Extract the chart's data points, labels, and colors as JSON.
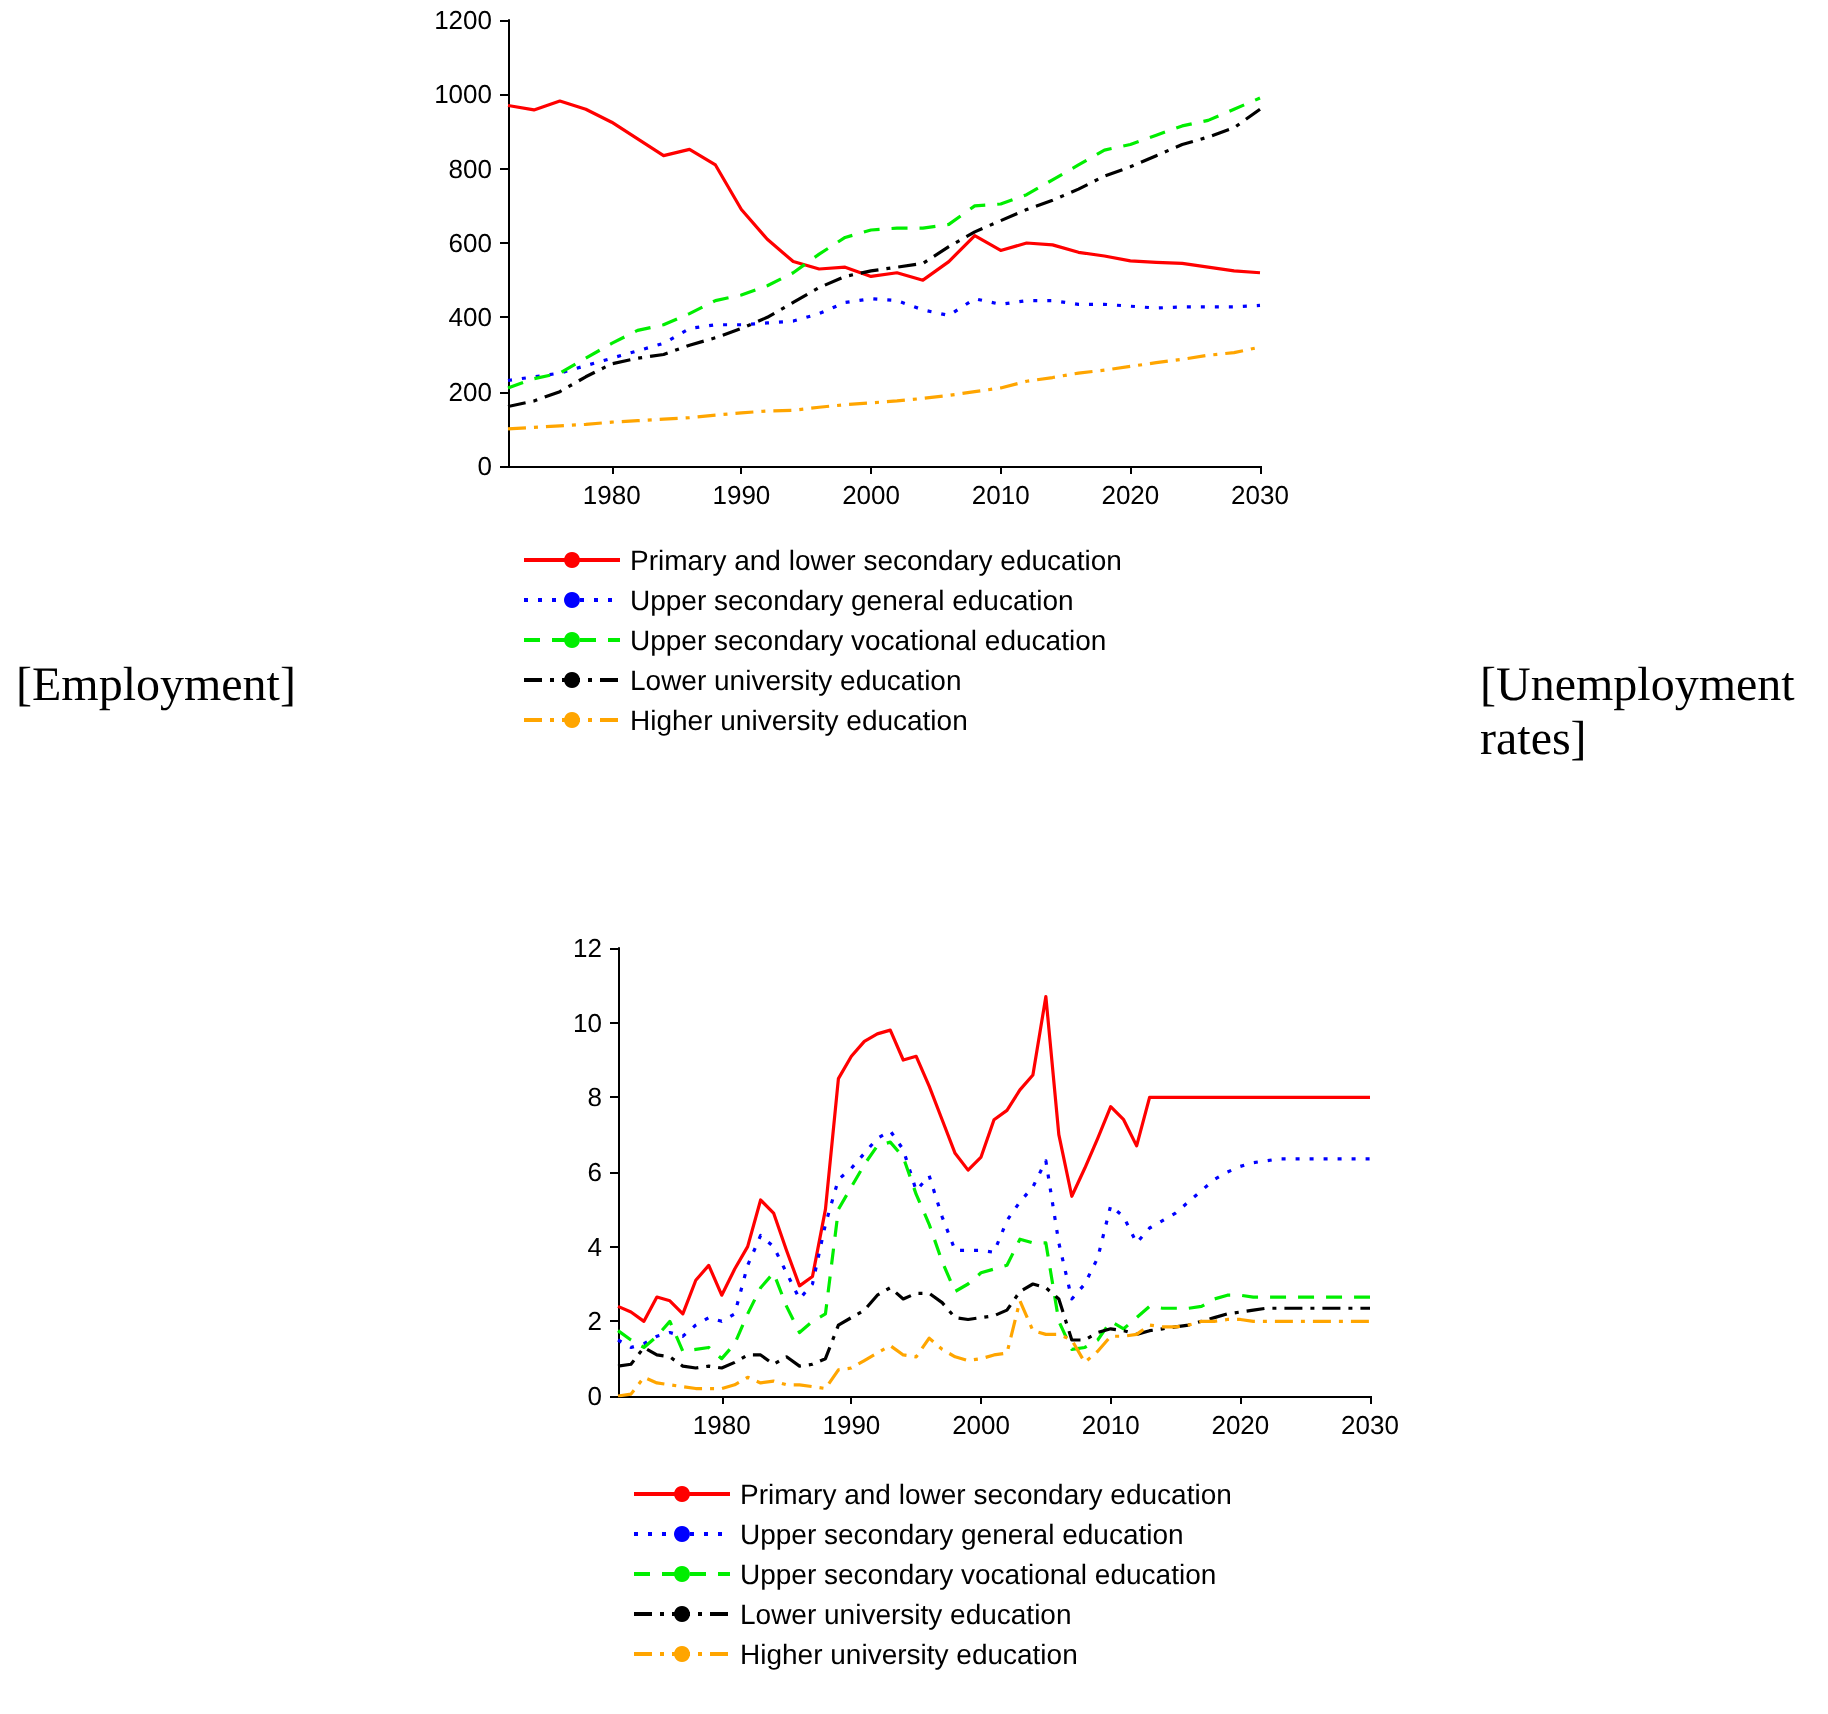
{
  "chart_data": [
    {
      "type": "line",
      "annotations": [
        "[Employment]"
      ],
      "legend": "bottom",
      "grid": false,
      "marker": "none",
      "xlim": [
        1972,
        2030
      ],
      "xticks": [
        1980,
        1990,
        2000,
        2010,
        2020,
        2030
      ],
      "ylim": [
        0,
        1200
      ],
      "yticks": [
        0,
        200,
        400,
        600,
        800,
        1000,
        1200
      ],
      "x": [
        1972,
        1974,
        1976,
        1978,
        1980,
        1982,
        1984,
        1986,
        1988,
        1990,
        1992,
        1994,
        1996,
        1998,
        2000,
        2002,
        2004,
        2006,
        2008,
        2010,
        2012,
        2014,
        2016,
        2018,
        2020,
        2022,
        2024,
        2026,
        2028,
        2030
      ],
      "series": [
        {
          "name": "Primary and lower secondary education",
          "color": "#ff0000",
          "line_style": "solid",
          "values": [
            970,
            958,
            982,
            960,
            925,
            880,
            835,
            852,
            810,
            690,
            610,
            550,
            530,
            535,
            510,
            520,
            500,
            550,
            620,
            580,
            600,
            595,
            575,
            565,
            552,
            548,
            545,
            535,
            525,
            520
          ]
        },
        {
          "name": "Upper secondary general education",
          "color": "#0000ff",
          "line_style": "dotted",
          "values": [
            230,
            240,
            250,
            270,
            290,
            310,
            330,
            370,
            380,
            380,
            385,
            390,
            410,
            440,
            450,
            445,
            420,
            405,
            450,
            435,
            445,
            445,
            435,
            435,
            430,
            425,
            428,
            428,
            428,
            432
          ]
        },
        {
          "name": "Upper secondary vocational education",
          "color": "#00ee00",
          "line_style": "dashed",
          "values": [
            210,
            235,
            250,
            290,
            330,
            365,
            380,
            410,
            445,
            460,
            485,
            520,
            570,
            615,
            635,
            640,
            640,
            650,
            700,
            705,
            730,
            770,
            810,
            850,
            865,
            890,
            915,
            930,
            960,
            990
          ]
        },
        {
          "name": "Lower university education",
          "color": "#000000",
          "line_style": "dashdot",
          "values": [
            160,
            175,
            200,
            240,
            275,
            290,
            300,
            325,
            345,
            370,
            400,
            440,
            480,
            510,
            525,
            535,
            545,
            590,
            630,
            660,
            690,
            715,
            745,
            780,
            805,
            835,
            865,
            885,
            910,
            960
          ]
        },
        {
          "name": "Higher university education",
          "color": "#ffa500",
          "line_style": "dashdot",
          "values": [
            100,
            104,
            108,
            112,
            118,
            122,
            126,
            130,
            137,
            143,
            148,
            150,
            158,
            165,
            170,
            175,
            182,
            190,
            200,
            210,
            228,
            238,
            250,
            258,
            268,
            278,
            287,
            298,
            305,
            320
          ]
        }
      ]
    },
    {
      "type": "line",
      "annotations": [
        "[Unemployment rates]"
      ],
      "legend": "bottom",
      "grid": false,
      "marker": "none",
      "xlim": [
        1972,
        2030
      ],
      "xticks": [
        1980,
        1990,
        2000,
        2010,
        2020,
        2030
      ],
      "ylim": [
        0,
        12
      ],
      "yticks": [
        0,
        2,
        4,
        6,
        8,
        10,
        12
      ],
      "x": [
        1972,
        1973,
        1974,
        1975,
        1976,
        1977,
        1978,
        1979,
        1980,
        1981,
        1982,
        1983,
        1984,
        1985,
        1986,
        1987,
        1988,
        1989,
        1990,
        1991,
        1992,
        1993,
        1994,
        1995,
        1996,
        1997,
        1998,
        1999,
        2000,
        2001,
        2002,
        2003,
        2004,
        2005,
        2006,
        2007,
        2008,
        2009,
        2010,
        2011,
        2012,
        2013,
        2014,
        2015,
        2016,
        2017,
        2018,
        2019,
        2020,
        2021,
        2022,
        2023,
        2024,
        2025,
        2026,
        2027,
        2028,
        2029,
        2030
      ],
      "series": [
        {
          "name": "Primary and lower secondary education",
          "color": "#ff0000",
          "line_style": "solid",
          "values": [
            2.4,
            2.25,
            2.0,
            2.65,
            2.55,
            2.2,
            3.1,
            3.5,
            2.7,
            3.4,
            4.0,
            5.25,
            4.9,
            3.9,
            2.95,
            3.2,
            5.0,
            8.5,
            9.1,
            9.5,
            9.7,
            9.8,
            9.0,
            9.1,
            8.3,
            7.4,
            6.5,
            6.05,
            6.4,
            7.4,
            7.65,
            8.2,
            8.6,
            10.7,
            7.0,
            5.35,
            6.1,
            6.9,
            7.75,
            7.4,
            6.7,
            8.0,
            8.0,
            8.0,
            8.0,
            8.0,
            8.0,
            8.0,
            8.0,
            8.0,
            8.0,
            8.0,
            8.0,
            8.0,
            8.0,
            8.0,
            8.0,
            8.0,
            8.0
          ]
        },
        {
          "name": "Upper secondary general education",
          "color": "#0000ff",
          "line_style": "dotted",
          "values": [
            1.5,
            1.3,
            1.4,
            1.6,
            1.7,
            1.6,
            1.9,
            2.1,
            2.0,
            2.2,
            3.5,
            4.3,
            4.0,
            3.3,
            2.6,
            3.0,
            4.6,
            5.8,
            6.1,
            6.5,
            6.9,
            7.1,
            6.6,
            5.5,
            5.9,
            4.8,
            3.9,
            3.9,
            3.9,
            3.85,
            4.7,
            5.2,
            5.6,
            6.3,
            4.1,
            2.6,
            3.0,
            3.7,
            5.1,
            4.8,
            4.1,
            4.5,
            4.7,
            4.9,
            5.2,
            5.5,
            5.8,
            6.0,
            6.15,
            6.25,
            6.3,
            6.35,
            6.35,
            6.35,
            6.35,
            6.35,
            6.35,
            6.35,
            6.35
          ]
        },
        {
          "name": "Upper secondary vocational education",
          "color": "#00ee00",
          "line_style": "dashed",
          "values": [
            1.75,
            1.5,
            1.3,
            1.6,
            2.0,
            1.2,
            1.25,
            1.3,
            1.0,
            1.4,
            2.2,
            2.9,
            3.3,
            2.4,
            1.7,
            2.0,
            2.2,
            5.0,
            5.6,
            6.2,
            6.7,
            6.8,
            6.4,
            5.4,
            4.6,
            3.6,
            2.8,
            3.0,
            3.3,
            3.4,
            3.5,
            4.2,
            4.1,
            4.1,
            2.0,
            1.25,
            1.3,
            1.5,
            2.0,
            1.8,
            2.1,
            2.4,
            2.35,
            2.35,
            2.35,
            2.4,
            2.6,
            2.7,
            2.7,
            2.65,
            2.65,
            2.65,
            2.65,
            2.65,
            2.65,
            2.65,
            2.65,
            2.65,
            2.65
          ]
        },
        {
          "name": "Lower university education",
          "color": "#000000",
          "line_style": "dashdot",
          "values": [
            0.8,
            0.85,
            1.3,
            1.1,
            1.05,
            0.8,
            0.75,
            0.8,
            0.75,
            0.9,
            1.1,
            1.1,
            0.85,
            1.05,
            0.8,
            0.85,
            1.0,
            1.9,
            2.1,
            2.3,
            2.7,
            2.9,
            2.6,
            2.75,
            2.75,
            2.5,
            2.1,
            2.05,
            2.1,
            2.15,
            2.3,
            2.8,
            3.0,
            2.9,
            2.6,
            1.5,
            1.5,
            1.7,
            1.8,
            1.75,
            1.65,
            1.75,
            1.8,
            1.85,
            1.9,
            2.0,
            2.1,
            2.2,
            2.25,
            2.3,
            2.35,
            2.35,
            2.35,
            2.35,
            2.35,
            2.35,
            2.35,
            2.35,
            2.35
          ]
        },
        {
          "name": "Higher university education",
          "color": "#ffa500",
          "line_style": "dashdot",
          "values": [
            0.0,
            0.05,
            0.5,
            0.35,
            0.3,
            0.25,
            0.2,
            0.2,
            0.2,
            0.3,
            0.5,
            0.35,
            0.4,
            0.3,
            0.3,
            0.25,
            0.2,
            0.7,
            0.75,
            0.95,
            1.15,
            1.35,
            1.1,
            1.05,
            1.55,
            1.25,
            1.05,
            0.95,
            1.0,
            1.1,
            1.15,
            2.55,
            1.75,
            1.65,
            1.65,
            1.5,
            0.9,
            1.2,
            1.6,
            1.6,
            1.65,
            1.9,
            1.85,
            1.85,
            1.9,
            2.0,
            2.0,
            2.05,
            2.05,
            2.0,
            2.0,
            2.0,
            2.0,
            2.0,
            2.0,
            2.0,
            2.0,
            2.0,
            2.0
          ]
        }
      ]
    }
  ]
}
